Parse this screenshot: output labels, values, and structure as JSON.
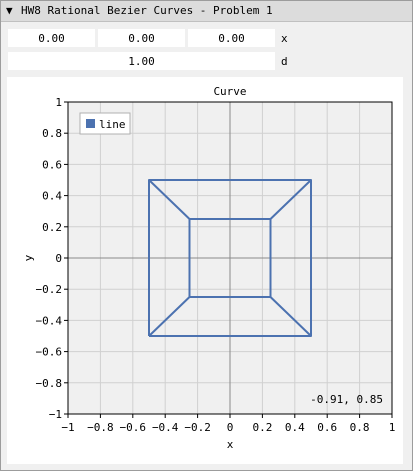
{
  "window": {
    "title": "HW8 Rational Bezier Curves - Problem 1",
    "collapse_icon": "triangle-down-icon"
  },
  "controls": {
    "row1": {
      "values": [
        "0.00",
        "0.00",
        "0.00"
      ],
      "label": "x"
    },
    "row2": {
      "value": "1.00",
      "label": "d"
    }
  },
  "plot": {
    "mouse_readout": "-0.91, 0.85"
  },
  "chart_data": {
    "type": "line",
    "title": "Curve",
    "xlabel": "x",
    "ylabel": "y",
    "xlim": [
      -1,
      1
    ],
    "ylim": [
      -1,
      1
    ],
    "xticks": [
      -1,
      -0.8,
      -0.6,
      -0.4,
      -0.2,
      0,
      0.2,
      0.4,
      0.6,
      0.8,
      1
    ],
    "yticks": [
      -1,
      -0.8,
      -0.6,
      -0.4,
      -0.2,
      0,
      0.2,
      0.4,
      0.6,
      0.8,
      1
    ],
    "xtick_labels": [
      "−1",
      "−0.8",
      "−0.6",
      "−0.4",
      "−0.2",
      "0",
      "0.2",
      "0.4",
      "0.6",
      "0.8",
      "1"
    ],
    "ytick_labels": [
      "−1",
      "−0.8",
      "−0.6",
      "−0.4",
      "−0.2",
      "0",
      "0.2",
      "0.4",
      "0.6",
      "0.8",
      "1"
    ],
    "grid": true,
    "legend_position": "top-left",
    "series": [
      {
        "name": "line",
        "color": "#4c72b0",
        "segments": [
          [
            [
              -0.5,
              -0.5
            ],
            [
              0.5,
              -0.5
            ],
            [
              0.5,
              0.5
            ],
            [
              -0.5,
              0.5
            ],
            [
              -0.5,
              -0.5
            ]
          ],
          [
            [
              -0.25,
              -0.25
            ],
            [
              0.25,
              -0.25
            ],
            [
              0.25,
              0.25
            ],
            [
              -0.25,
              0.25
            ],
            [
              -0.25,
              -0.25
            ]
          ],
          [
            [
              -0.5,
              0.5
            ],
            [
              -0.25,
              0.25
            ]
          ],
          [
            [
              0.5,
              0.5
            ],
            [
              0.25,
              0.25
            ]
          ],
          [
            [
              -0.5,
              -0.5
            ],
            [
              -0.25,
              -0.25
            ]
          ],
          [
            [
              0.5,
              -0.5
            ],
            [
              0.25,
              -0.25
            ]
          ]
        ]
      }
    ]
  }
}
